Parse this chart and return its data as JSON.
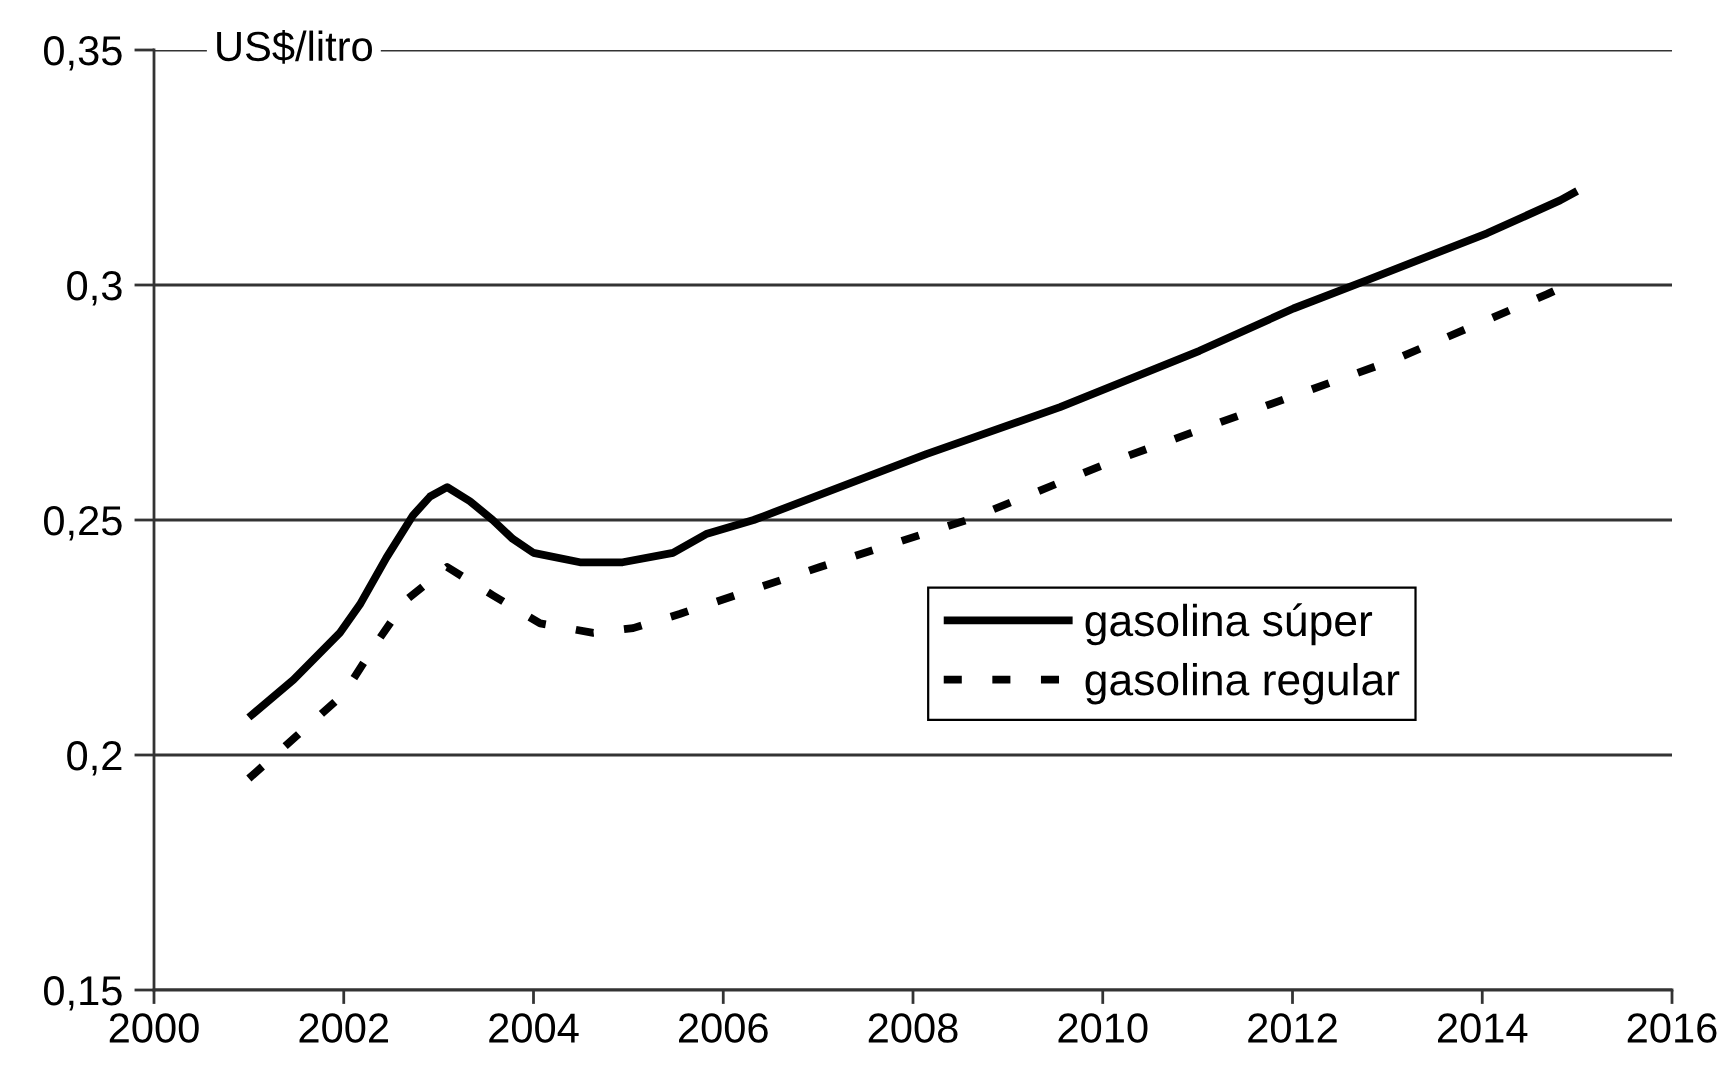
{
  "chart_data": {
    "type": "line",
    "ylabel": "US$/litro",
    "xlim": [
      2000,
      2016
    ],
    "xticks": [
      2000,
      2002,
      2004,
      2006,
      2008,
      2010,
      2012,
      2014,
      2016
    ],
    "ylim": [
      0.15,
      0.35
    ],
    "yticks": [
      {
        "value": 0.15,
        "label": "0,15"
      },
      {
        "value": 0.2,
        "label": "0,2"
      },
      {
        "value": 0.25,
        "label": "0,25"
      },
      {
        "value": 0.3,
        "label": "0,3"
      },
      {
        "value": 0.35,
        "label": "0,35"
      }
    ],
    "grid": "y",
    "legend": "right",
    "series": [
      {
        "name": "gasolina súper",
        "color": "#000000",
        "line_style": "solid",
        "x": [
          2001.0,
          2001.47,
          2001.96,
          2002.17,
          2002.45,
          2002.73,
          2002.91,
          2003.09,
          2003.33,
          2003.57,
          2003.78,
          2004.0,
          2004.49,
          2004.94,
          2005.47,
          2005.82,
          2006.32,
          2008.14,
          2009.55,
          2011.02,
          2012.01,
          2012.78,
          2014.05,
          2014.82,
          2015.0
        ],
        "values": [
          0.208,
          0.216,
          0.226,
          0.232,
          0.242,
          0.251,
          0.255,
          0.257,
          0.254,
          0.25,
          0.246,
          0.243,
          0.241,
          0.241,
          0.243,
          0.247,
          0.25,
          0.264,
          0.274,
          0.286,
          0.295,
          0.301,
          0.311,
          0.318,
          0.32
        ]
      },
      {
        "name": "gasolina regular",
        "color": "#000000",
        "line_style": "dashed",
        "x": [
          2001.0,
          2001.5,
          2002.0,
          2002.35,
          2002.66,
          2003.09,
          2003.57,
          2004.07,
          2004.63,
          2005.05,
          2005.54,
          2007.02,
          2008.57,
          2010.04,
          2011.54,
          2013.06,
          2014.68,
          2015.0
        ],
        "values": [
          0.195,
          0.204,
          0.213,
          0.224,
          0.233,
          0.24,
          0.234,
          0.228,
          0.226,
          0.227,
          0.23,
          0.24,
          0.25,
          0.262,
          0.273,
          0.284,
          0.298,
          0.301
        ]
      }
    ]
  }
}
